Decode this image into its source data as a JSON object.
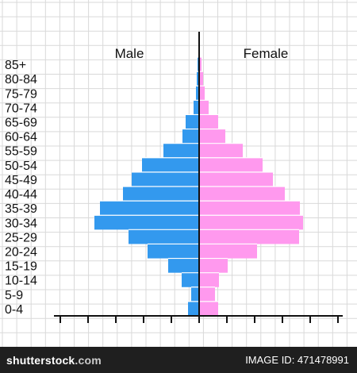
{
  "chart_data": {
    "type": "bar",
    "orientation": "horizontal-pyramid",
    "categories": [
      "0-4",
      "5-9",
      "10-14",
      "15-19",
      "20-24",
      "25-29",
      "30-34",
      "35-39",
      "40-44",
      "45-49",
      "50-54",
      "55-59",
      "60-64",
      "65-69",
      "70-74",
      "75-79",
      "80-84",
      "85+"
    ],
    "series": [
      {
        "name": "Male",
        "color": "#3399ee",
        "values": [
          14,
          10,
          22,
          39,
          65,
          89,
          132,
          125,
          96,
          85,
          72,
          45,
          21,
          17,
          7,
          4,
          3,
          2
        ]
      },
      {
        "name": "Female",
        "color": "#ff99ee",
        "values": [
          24,
          20,
          25,
          36,
          73,
          126,
          131,
          127,
          108,
          93,
          80,
          55,
          33,
          24,
          12,
          7,
          5,
          3
        ]
      }
    ],
    "xlim": [
      -175,
      175
    ],
    "grid": true
  },
  "watermark": {
    "text": "SHUTTERSTOCK"
  },
  "footer": {
    "site": "shutterstock",
    "code": "IMAGE ID: 471478991",
    "site_suffix": ".com"
  }
}
